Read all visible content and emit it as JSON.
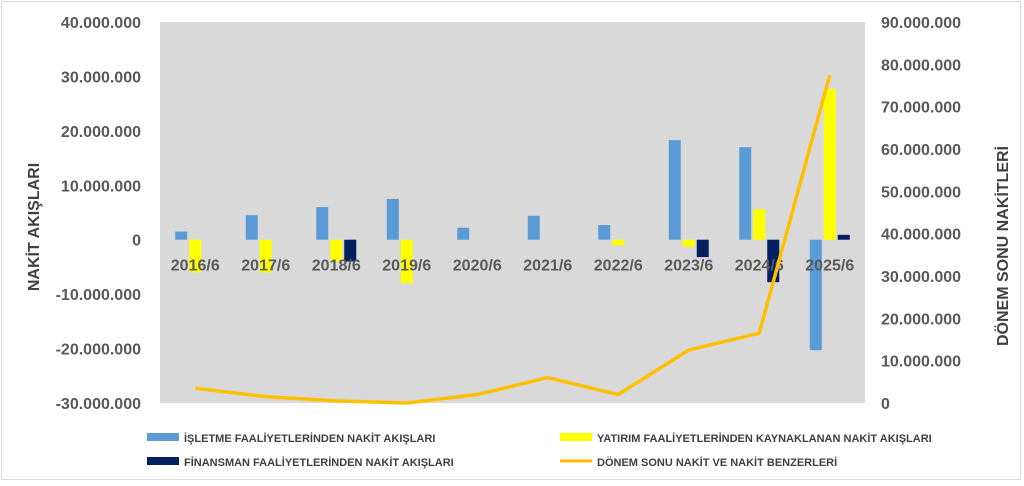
{
  "chart_data": {
    "type": "bar+line",
    "categories": [
      "2016/6",
      "2017/6",
      "2018/6",
      "2019/6",
      "2020/6",
      "2021/6",
      "2022/6",
      "2023/6",
      "2024/6",
      "2025/6"
    ],
    "bar_series": [
      {
        "name": "İŞLETME FAALİYETLERİNDEN NAKİT AKIŞLARI",
        "color": "#5b9bd5",
        "values": [
          1500000,
          4500000,
          6000000,
          7500000,
          2200000,
          4400000,
          2700000,
          18300000,
          17000000,
          -20300000
        ]
      },
      {
        "name": "YATIRIM FAALİYETLERİNDEN KAYNAKLANAN NAKİT AKIŞLARI",
        "color": "#ffff00",
        "values": [
          -6000000,
          -6000000,
          -4000000,
          -8000000,
          0,
          0,
          -1000000,
          -1300000,
          5600000,
          27700000
        ]
      },
      {
        "name": "FİNANSMAN FAALİYETLERİNDEN NAKİT AKIŞLARI",
        "color": "#002060",
        "values": [
          0,
          0,
          -4000000,
          0,
          0,
          0,
          0,
          -3200000,
          -7800000,
          900000
        ]
      }
    ],
    "line_series": {
      "name": "DÖNEM SONU NAKİT VE NAKİT BENZERLERİ",
      "color": "#ffc000",
      "values": [
        3500000,
        1500000,
        500000,
        0,
        2000000,
        6000000,
        2000000,
        12500000,
        16500000,
        77500000
      ]
    },
    "y_left": {
      "label": "NAKİT AKIŞLARI",
      "min": -30000000,
      "max": 40000000,
      "step": 10000000,
      "ticks": [
        "40.000.000",
        "30.000.000",
        "20.000.000",
        "10.000.000",
        "0",
        "-10.000.000",
        "-20.000.000",
        "-30.000.000"
      ]
    },
    "y_right": {
      "label": "DÖNEM SONU NAKİTLERİ",
      "min": 0,
      "max": 90000000,
      "step": 10000000,
      "ticks": [
        "90.000.000",
        "80.000.000",
        "70.000.000",
        "60.000.000",
        "50.000.000",
        "40.000.000",
        "30.000.000",
        "20.000.000",
        "10.000.000",
        "0"
      ]
    },
    "plot_background": "#d9d9d9",
    "grid": false,
    "legend_position": "bottom"
  }
}
